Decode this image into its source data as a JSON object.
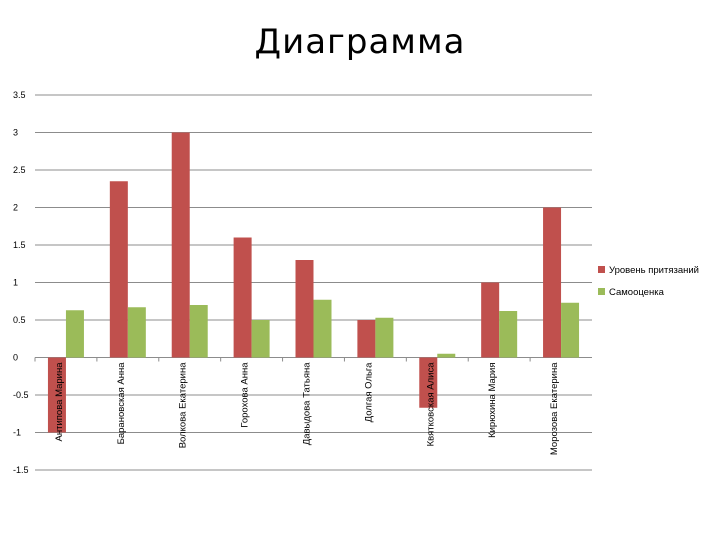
{
  "chart_data": {
    "type": "bar",
    "title": "Диаграмма",
    "categories": [
      "Антипова Марина",
      "Барановская Анна",
      "Волкова Екатерина",
      "Горохова Анна",
      "Давыдова Татьяна",
      "Долгая Ольга",
      "Квятковская Алиса",
      "Кирюхина Мария",
      "Морозова Екатерина"
    ],
    "series": [
      {
        "name": "Уровень притязаний",
        "color": "#C0504D",
        "values": [
          -1,
          2.35,
          3,
          1.6,
          1.3,
          0.5,
          -0.67,
          1,
          2
        ]
      },
      {
        "name": "Самооценка",
        "color": "#9BBB59",
        "values": [
          0.63,
          0.67,
          0.7,
          0.5,
          0.77,
          0.53,
          0.05,
          0.62,
          0.73
        ]
      }
    ],
    "ylim": [
      -1.5,
      3.5
    ],
    "yticks": [
      "3.5",
      "3",
      "2.5",
      "2",
      "1.5",
      "1",
      "0.5",
      "0",
      "-0.5",
      "-1",
      "-1.5"
    ],
    "grid": true,
    "legend_position": "right"
  }
}
